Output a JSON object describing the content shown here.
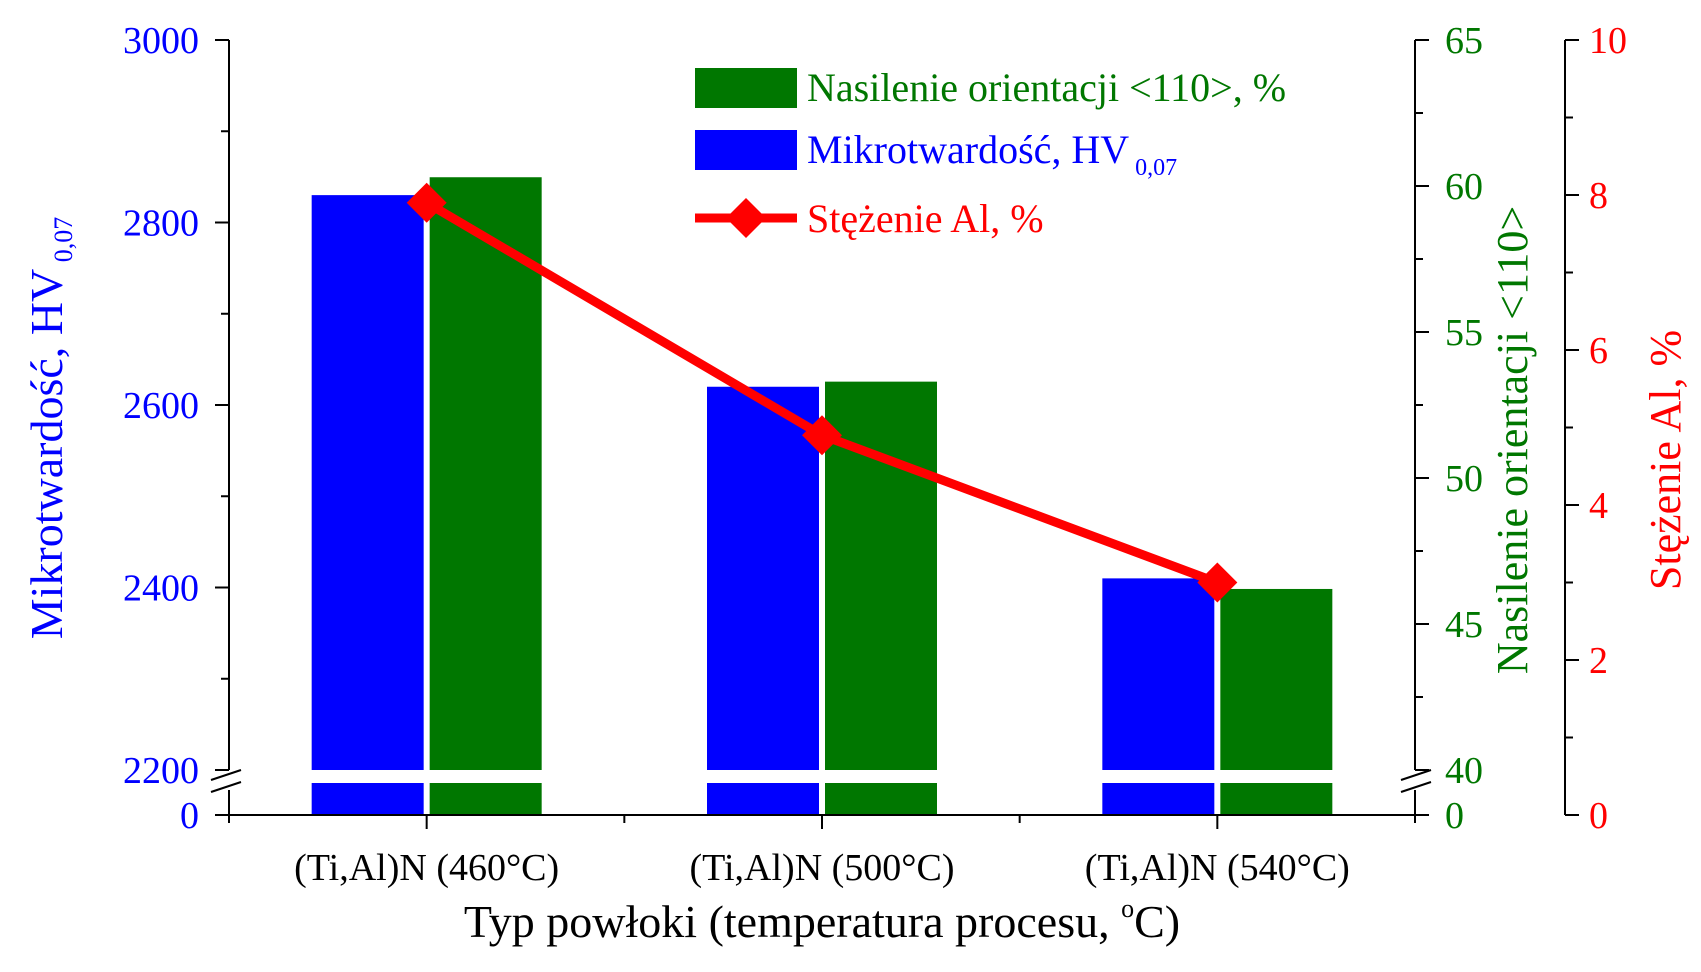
{
  "chart_data": {
    "type": "bar",
    "categories": [
      "(Ti,Al)N (460°C)",
      "(Ti,Al)N (500°C)",
      "(Ti,Al)N (540°C)"
    ],
    "xlabel_main": "Typ powłoki (temperatura procesu, ",
    "xlabel_sup": "o",
    "xlabel_end": "C)",
    "left_axis": {
      "label_main": "Mikrotwardość, HV",
      "label_sub": " 0,07",
      "ticks": [
        "3000",
        "2800",
        "2600",
        "2400",
        "2200"
      ],
      "tick_values": [
        3000,
        2800,
        2600,
        2400,
        2200
      ],
      "low_tick": "0",
      "range": [
        2200,
        3000
      ],
      "color": "#0000ff"
    },
    "green_axis": {
      "label": "Nasilenie orientacji <110>",
      "ticks": [
        "65",
        "60",
        "55",
        "50",
        "45",
        "40"
      ],
      "tick_values": [
        65,
        60,
        55,
        50,
        45,
        40
      ],
      "low_tick": "0",
      "range": [
        40,
        65
      ],
      "color": "#007700"
    },
    "red_axis": {
      "label": "Stężenie Al, %",
      "ticks": [
        "10",
        "8",
        "6",
        "4",
        "2",
        "0"
      ],
      "tick_values": [
        10,
        8,
        6,
        4,
        2,
        0
      ],
      "range": [
        0,
        10
      ],
      "color": "#ff0000"
    },
    "series": [
      {
        "name": "Mikrotwardość, HV",
        "name_sub": " 0,07",
        "axis": "left",
        "kind": "bar",
        "color": "#0000ff",
        "values": [
          2830,
          2620,
          2410
        ]
      },
      {
        "name": "Nasilenie orientacji <110>, %",
        "axis": "green",
        "kind": "bar",
        "color": "#007700",
        "values": [
          60.3,
          53.3,
          46.2
        ]
      },
      {
        "name": "Stężenie Al, %",
        "axis": "red",
        "kind": "line",
        "marker": "diamond",
        "color": "#ff0000",
        "values": [
          7.9,
          4.9,
          3.0
        ]
      }
    ],
    "legend_position": "top-right",
    "axis_break": true,
    "grid": false
  }
}
